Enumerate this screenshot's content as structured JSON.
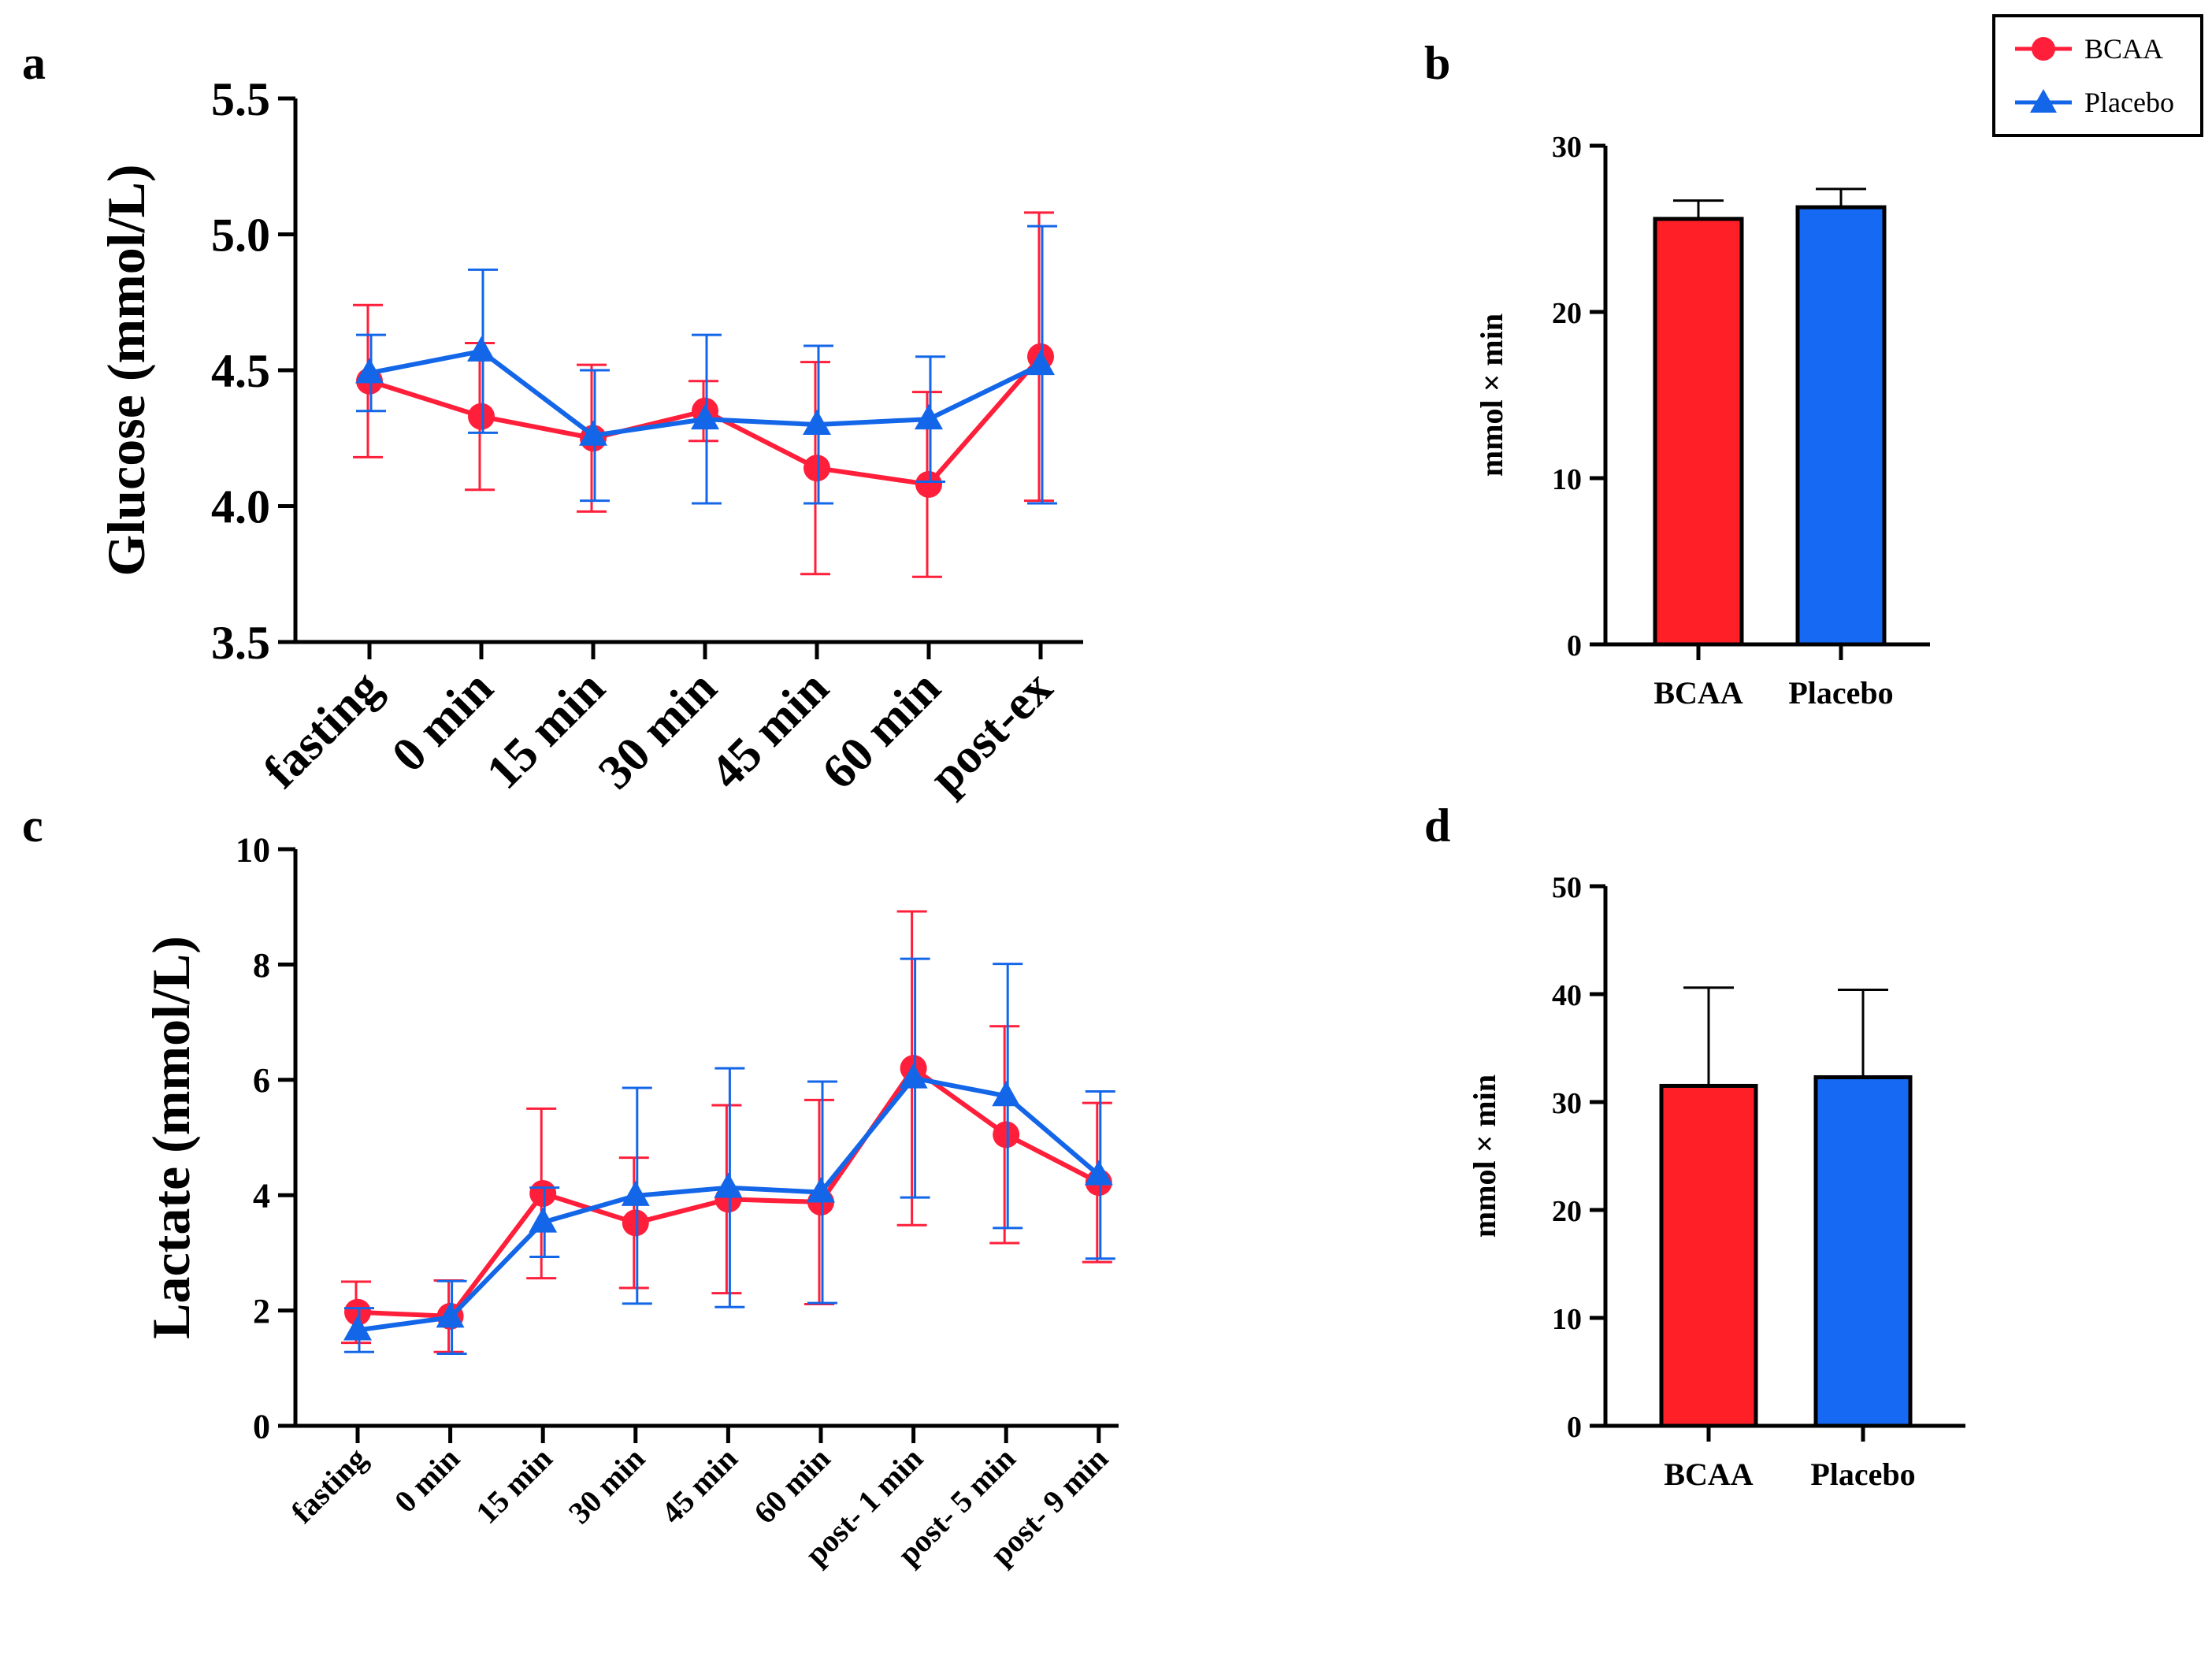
{
  "colors": {
    "bcaa": "#ff1f3a",
    "placebo": "#1466e8",
    "bcaa_bar": "#ff1f26",
    "placebo_bar": "#1669f2"
  },
  "legend": {
    "bcaa": "BCAA",
    "placebo": "Placebo"
  },
  "chart_data": [
    {
      "id": "a",
      "type": "line",
      "panel_label": "a",
      "ylabel": "Glucose (mmol/L)",
      "ylim": [
        3.5,
        5.5
      ],
      "yticks": [
        "3.5",
        "4.0",
        "4.5",
        "5.0",
        "5.5"
      ],
      "categories": [
        "fasting",
        "0 min",
        "15 min",
        "30 min",
        "45 min",
        "60 min",
        "post-ex"
      ],
      "series": [
        {
          "name": "BCAA",
          "values": [
            4.46,
            4.33,
            4.25,
            4.35,
            4.14,
            4.08,
            4.55
          ],
          "errors": [
            0.28,
            0.27,
            0.27,
            0.11,
            0.39,
            0.34,
            0.53
          ]
        },
        {
          "name": "Placebo",
          "values": [
            4.49,
            4.57,
            4.26,
            4.32,
            4.3,
            4.32,
            4.52
          ],
          "errors": [
            0.14,
            0.3,
            0.24,
            0.31,
            0.29,
            0.23,
            0.51
          ]
        }
      ]
    },
    {
      "id": "b",
      "type": "bar",
      "panel_label": "b",
      "ylabel": "mmol × min",
      "ylim": [
        0,
        30
      ],
      "yticks": [
        "0",
        "10",
        "20",
        "30"
      ],
      "categories": [
        "BCAA",
        "Placebo"
      ],
      "values": [
        25.6,
        26.3
      ],
      "errors": [
        1.1,
        1.1
      ]
    },
    {
      "id": "c",
      "type": "line",
      "panel_label": "c",
      "ylabel": "Lactate (mmol/L)",
      "ylim": [
        0,
        10
      ],
      "yticks": [
        "0",
        "2",
        "4",
        "6",
        "8",
        "10"
      ],
      "categories": [
        "fasting",
        "0 min",
        "15 min",
        "30 min",
        "45 min",
        "60 min",
        "post- 1 min",
        "post- 5 min",
        "post- 9 min"
      ],
      "series": [
        {
          "name": "BCAA",
          "values": [
            1.97,
            1.9,
            4.03,
            3.52,
            3.93,
            3.88,
            6.2,
            5.05,
            4.22
          ],
          "errors": [
            0.53,
            0.62,
            1.47,
            1.13,
            1.63,
            1.77,
            2.72,
            1.88,
            1.38
          ]
        },
        {
          "name": "Placebo",
          "values": [
            1.66,
            1.88,
            3.53,
            3.99,
            4.13,
            4.05,
            6.03,
            5.72,
            4.35
          ],
          "errors": [
            0.38,
            0.63,
            0.6,
            1.87,
            2.07,
            1.92,
            2.07,
            2.29,
            1.45
          ]
        }
      ]
    },
    {
      "id": "d",
      "type": "bar",
      "panel_label": "d",
      "ylabel": "mmol × min",
      "ylim": [
        0,
        50
      ],
      "yticks": [
        "0",
        "10",
        "20",
        "30",
        "40",
        "50"
      ],
      "categories": [
        "BCAA",
        "Placebo"
      ],
      "values": [
        31.5,
        32.3
      ],
      "errors": [
        9.1,
        8.1
      ]
    }
  ]
}
